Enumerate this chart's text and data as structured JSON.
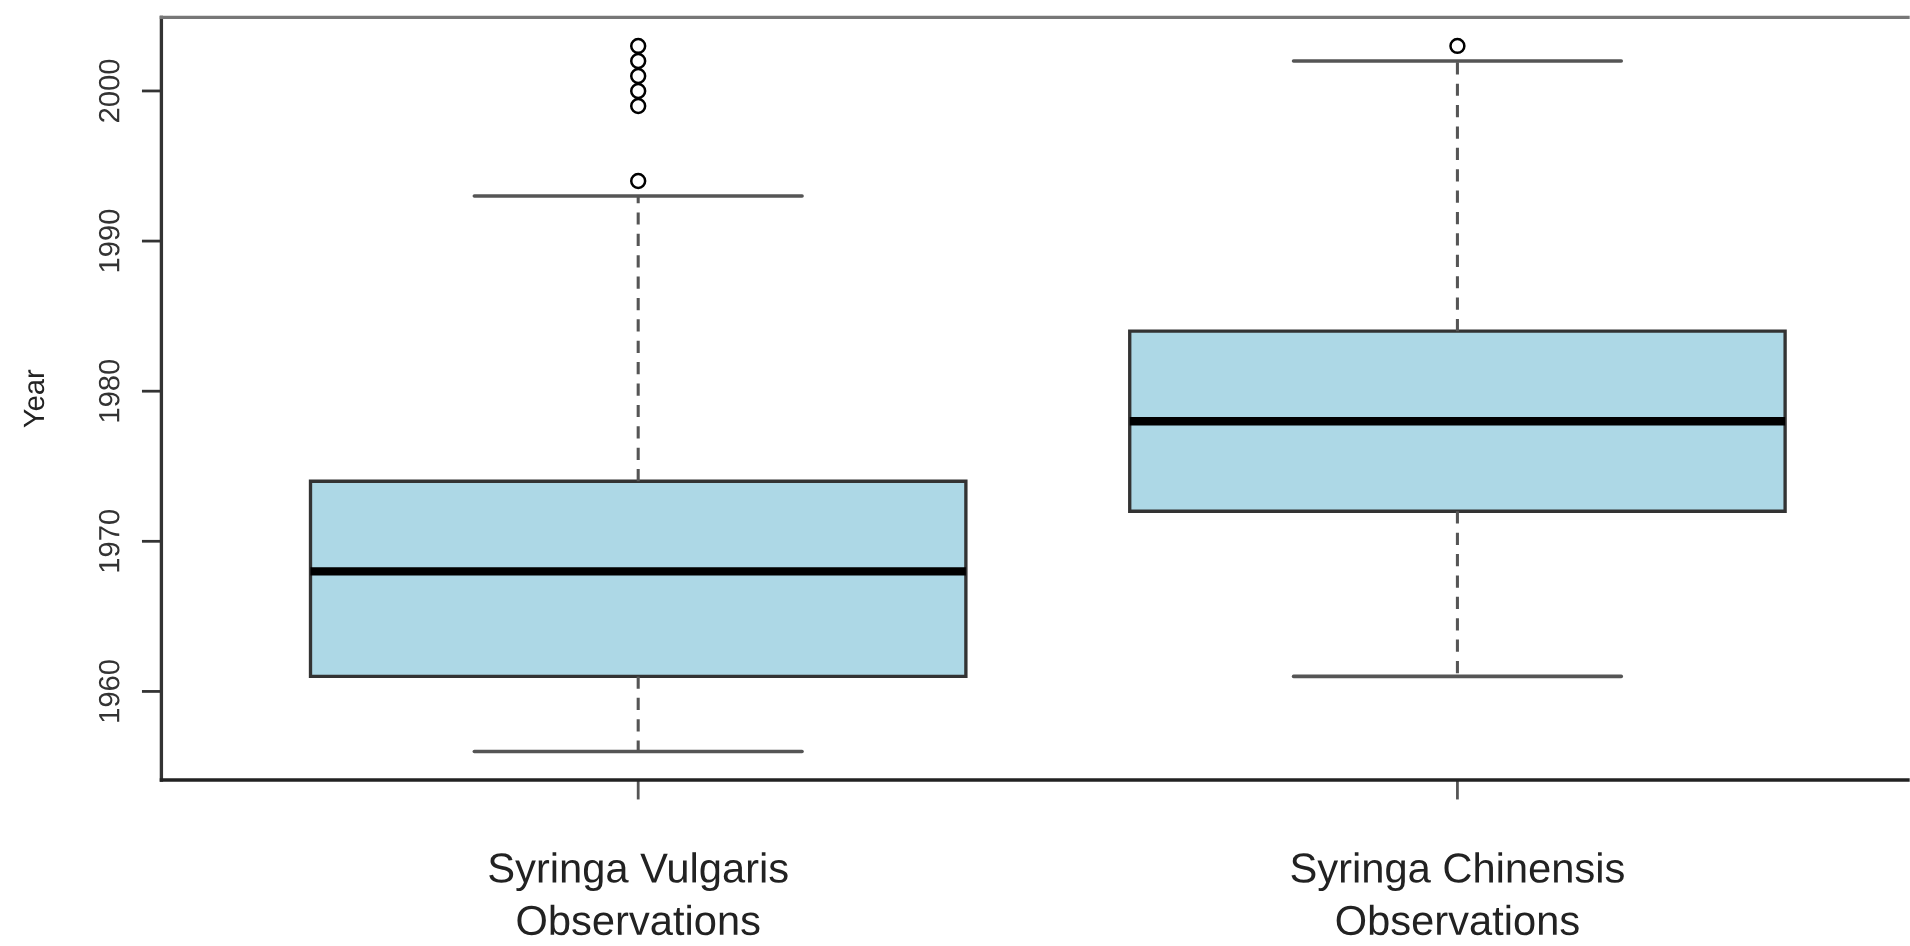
{
  "chart_data": {
    "type": "box",
    "ylabel": "Year",
    "categories": [
      "Syringa Vulgaris\nObservations",
      "Syringa Chinensis\nObservations"
    ],
    "boxes": [
      {
        "low": 1956,
        "q1": 1961,
        "median": 1968,
        "q3": 1974,
        "high": 1993,
        "outliers": [
          1994,
          1999,
          2000,
          2001,
          2002,
          2003
        ]
      },
      {
        "low": 1961,
        "q1": 1972,
        "median": 1978,
        "q3": 1984,
        "high": 2002,
        "outliers": [
          2003
        ]
      }
    ],
    "color": "#add8e6",
    "ylim": [
      1954.1,
      2004.9
    ],
    "yticks": [
      1960,
      1970,
      1980,
      1990,
      2000
    ],
    "grid": false
  }
}
